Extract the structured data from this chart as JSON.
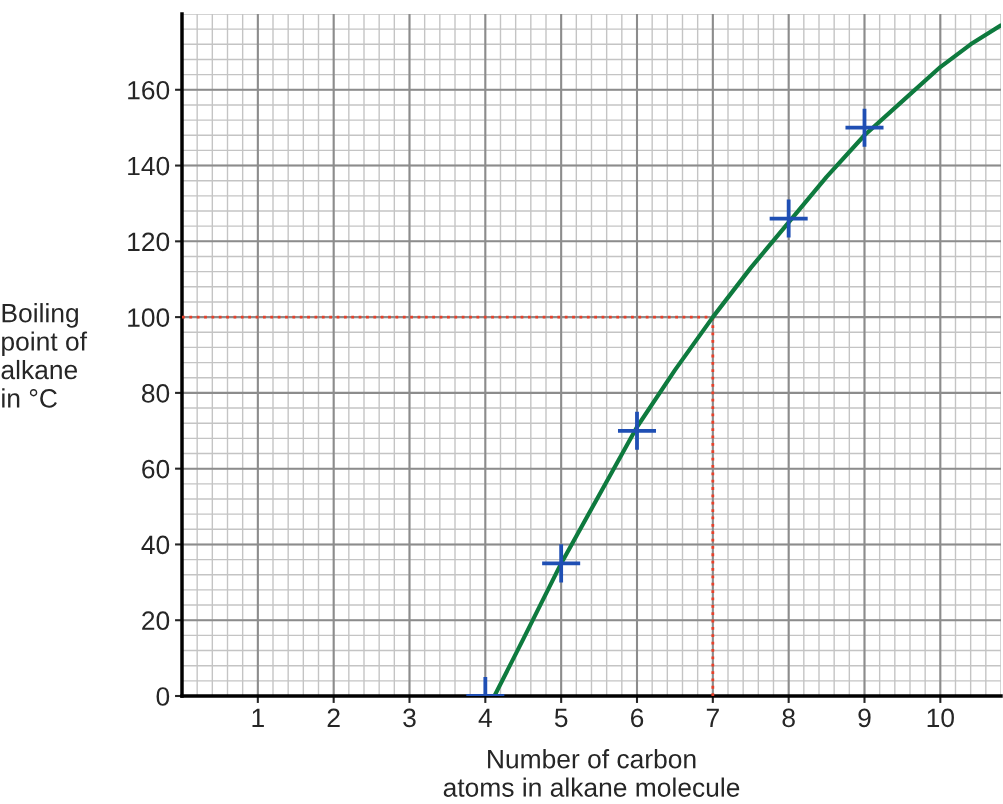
{
  "chart_data": {
    "type": "scatter",
    "xlabel": "Number of carbon\natoms in alkane molecule",
    "ylabel": "Boiling\npoint of\nalkane\nin °C",
    "xlim": [
      0,
      10.8
    ],
    "xticks": [
      1,
      2,
      3,
      4,
      5,
      6,
      7,
      8,
      9,
      10
    ],
    "ylim": [
      0,
      180
    ],
    "yticks": [
      0,
      20,
      40,
      60,
      80,
      100,
      120,
      140,
      160
    ],
    "grid": true,
    "marker": "cross",
    "series": [
      {
        "color": "#1f4fb4",
        "x": [
          4,
          5,
          6,
          8,
          9
        ],
        "values": [
          0,
          35,
          70,
          126,
          150
        ]
      },
      {
        "type": "line",
        "marker": "none",
        "color": "#0e7a3e",
        "x": [
          4.12,
          4.5,
          5,
          5.5,
          6,
          6.5,
          7,
          7.5,
          8,
          8.5,
          9,
          9.5,
          10,
          10.4,
          10.8
        ],
        "values": [
          0,
          15,
          35,
          53,
          71,
          86,
          100,
          113,
          125,
          137,
          148,
          157,
          166,
          172,
          177
        ]
      }
    ],
    "ref_lines": [
      {
        "axis": "y",
        "value": 100,
        "color": "#e8402a",
        "line_style": "dotted"
      },
      {
        "axis": "x",
        "value": 7,
        "color": "#e8402a",
        "line_style": "dotted"
      }
    ]
  }
}
